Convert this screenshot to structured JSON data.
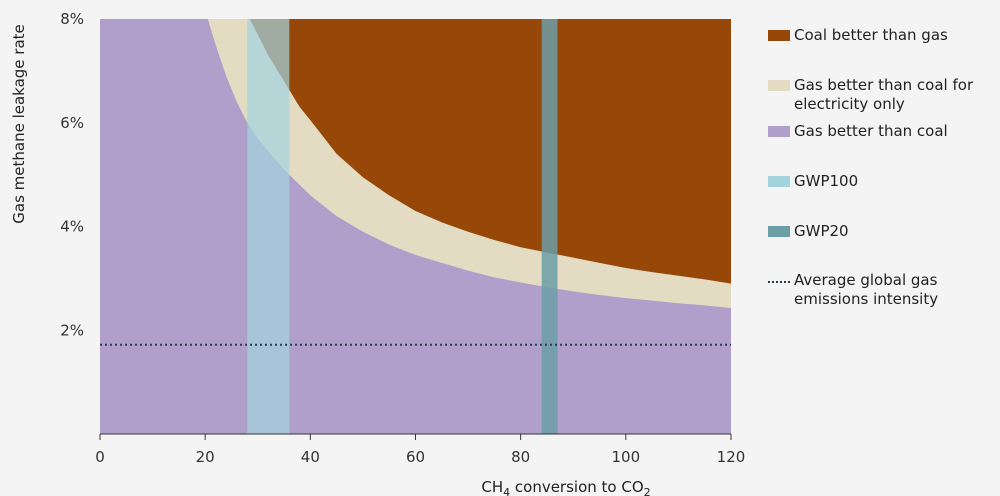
{
  "chart_data": {
    "type": "area",
    "xlabel_main": "CH",
    "xlabel_sub1": "4",
    "xlabel_mid": " conversion to CO",
    "xlabel_sub2": "2",
    "ylabel": "Gas methane leakage rate",
    "xlim": [
      0,
      120
    ],
    "ylim": [
      0,
      8
    ],
    "x_ticks": [
      {
        "value": 0,
        "label": "0"
      },
      {
        "value": 20,
        "label": "20"
      },
      {
        "value": 40,
        "label": "40"
      },
      {
        "value": 60,
        "label": "60"
      },
      {
        "value": 80,
        "label": "80"
      },
      {
        "value": 100,
        "label": "100"
      },
      {
        "value": 120,
        "label": "120"
      }
    ],
    "y_ticks": [
      {
        "value": 2,
        "label": "2%"
      },
      {
        "value": 4,
        "label": "4%"
      },
      {
        "value": 6,
        "label": "6%"
      },
      {
        "value": 8,
        "label": "8%"
      }
    ],
    "boundaries": {
      "coal_better_than_gas_lower": {
        "x": [
          28.5,
          30,
          32,
          35,
          38,
          40,
          45,
          50,
          55,
          60,
          65,
          70,
          75,
          80,
          85,
          90,
          95,
          100,
          105,
          110,
          115,
          120
        ],
        "y": [
          8.0,
          7.7,
          7.3,
          6.8,
          6.3,
          6.05,
          5.4,
          4.95,
          4.6,
          4.3,
          4.08,
          3.9,
          3.74,
          3.6,
          3.5,
          3.4,
          3.3,
          3.2,
          3.12,
          3.05,
          2.98,
          2.9
        ]
      },
      "gas_better_than_coal_upper": {
        "x": [
          20.5,
          22,
          24,
          26,
          28,
          30,
          32,
          35,
          38,
          40,
          45,
          50,
          55,
          60,
          65,
          70,
          75,
          80,
          85,
          90,
          95,
          100,
          105,
          110,
          115,
          120
        ],
        "y": [
          8.0,
          7.5,
          6.9,
          6.4,
          6.0,
          5.7,
          5.45,
          5.1,
          4.8,
          4.6,
          4.2,
          3.9,
          3.65,
          3.45,
          3.3,
          3.15,
          3.02,
          2.92,
          2.83,
          2.75,
          2.68,
          2.62,
          2.57,
          2.52,
          2.48,
          2.43
        ]
      }
    },
    "bands": [
      {
        "name": "GWP100",
        "x_range": [
          28,
          36
        ]
      },
      {
        "name": "GWP20",
        "x_range": [
          84,
          87
        ]
      }
    ],
    "reference_line": {
      "name": "Average global gas emissions intensity",
      "y": 1.72
    },
    "colors": {
      "coal_better": "#974707",
      "gas_electricity": "#e3dbc2",
      "gas_better": "#b09fca",
      "gwp100": "#a4d3de",
      "gwp20": "#6c9ea7",
      "reference_line": "#2b3a4a"
    },
    "legend": [
      {
        "label": "Coal better than gas",
        "color": "#974707",
        "kind": "box"
      },
      {
        "label": "Gas better than coal for\nelectricity only",
        "color": "#e3dbc2",
        "kind": "box"
      },
      {
        "label": "Gas better than coal",
        "color": "#b09fca",
        "kind": "box"
      },
      {
        "label": "GWP100",
        "color": "#a4d3de",
        "kind": "box"
      },
      {
        "label": "GWP20",
        "color": "#6c9ea7",
        "kind": "box"
      },
      {
        "label": "Average global gas\nemissions intensity",
        "color": "#2b3a4a",
        "kind": "dotted"
      }
    ],
    "legend_position": "right"
  }
}
